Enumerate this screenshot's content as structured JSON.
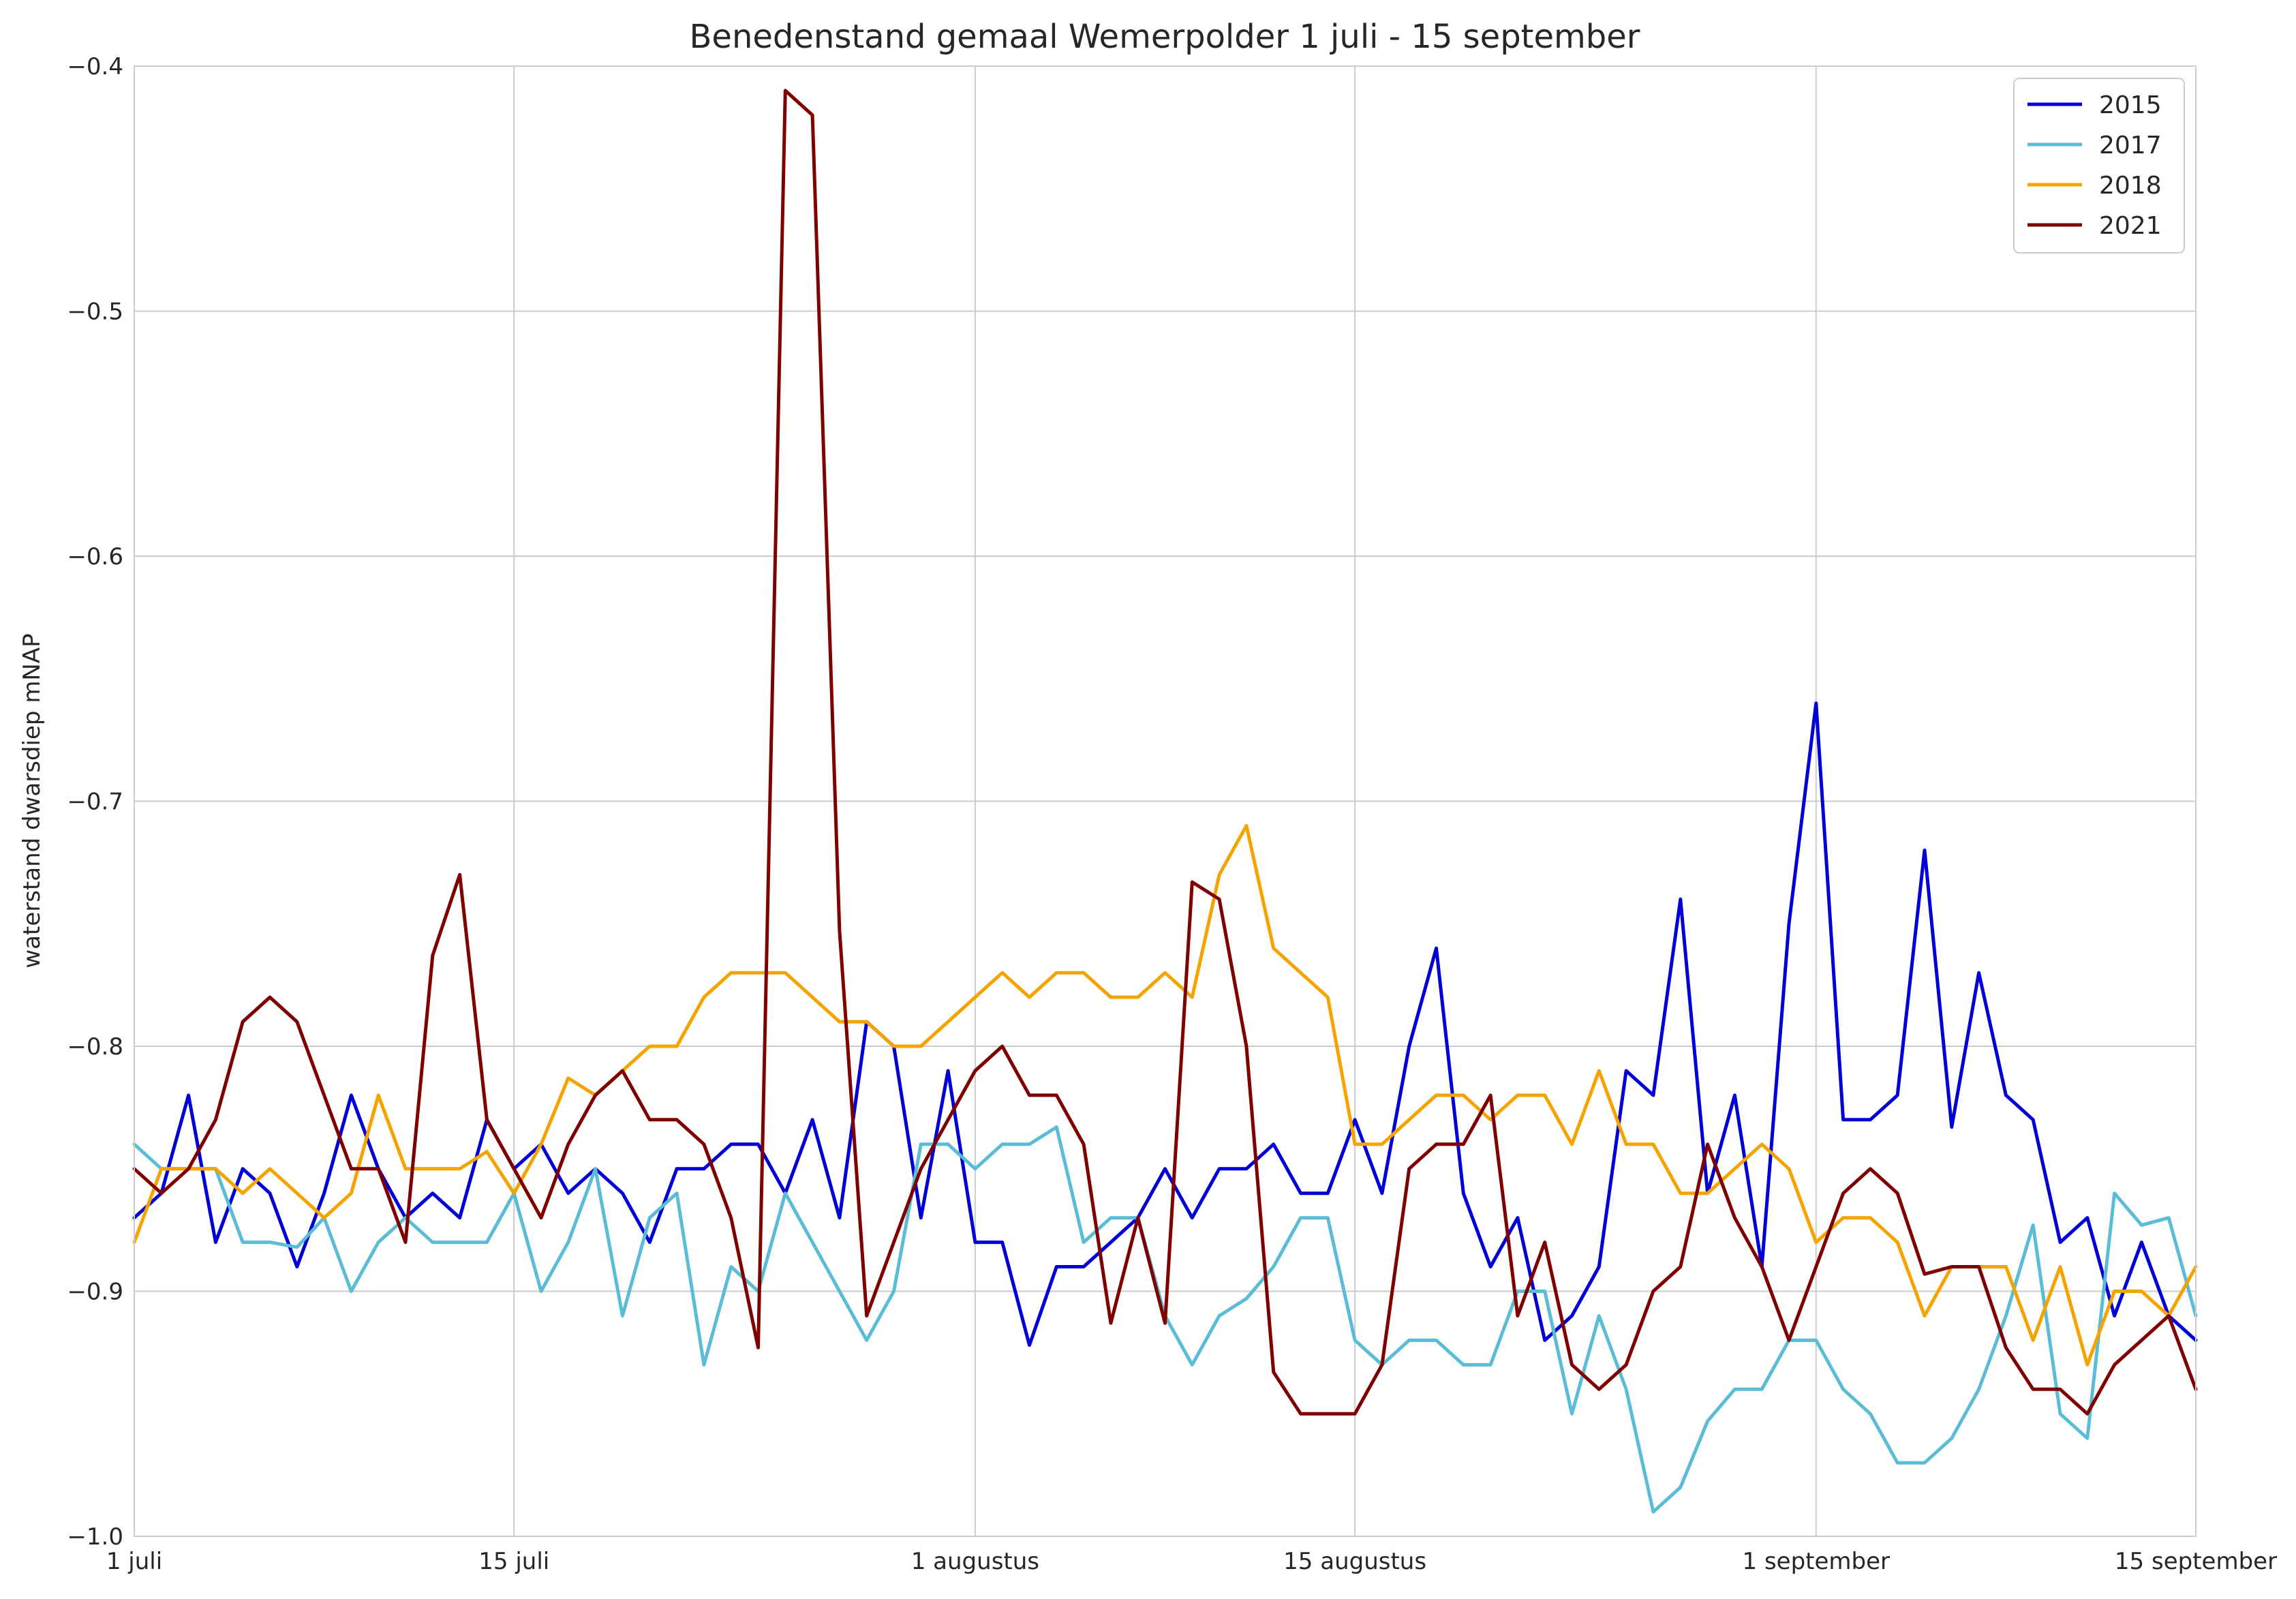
{
  "chart_data": {
    "type": "line",
    "title": "Benedenstand gemaal Wemerpolder 1 juli - 15 september",
    "xlabel": "",
    "ylabel": "waterstand dwarsdiep mNAP",
    "x_axis": {
      "ticks": [
        {
          "label": "1 juli",
          "day": 1
        },
        {
          "label": "15 juli",
          "day": 15
        },
        {
          "label": "1 augustus",
          "day": 32
        },
        {
          "label": "15 augustus",
          "day": 46
        },
        {
          "label": "1 september",
          "day": 63
        },
        {
          "label": "15 september",
          "day": 77
        }
      ],
      "xlim": [
        1,
        77
      ]
    },
    "y_axis": {
      "ylim": [
        -1.0,
        -0.4
      ],
      "ticks": [
        {
          "label": "−1.0",
          "value": -1.0
        },
        {
          "label": "−0.9",
          "value": -0.9
        },
        {
          "label": "−0.8",
          "value": -0.8
        },
        {
          "label": "−0.7",
          "value": -0.7
        },
        {
          "label": "−0.6",
          "value": -0.6
        },
        {
          "label": "−0.5",
          "value": -0.5
        },
        {
          "label": "−0.4",
          "value": -0.4
        }
      ]
    },
    "grid": true,
    "legend_position": "top-right",
    "series": [
      {
        "name": "2015",
        "color": "#0000d6",
        "x": [
          1,
          2,
          3,
          4,
          5,
          6,
          7,
          8,
          9,
          10,
          11,
          12,
          13,
          14,
          15,
          16,
          17,
          18,
          19,
          20,
          21,
          22,
          23,
          24,
          25,
          26,
          27,
          28,
          29,
          30,
          31,
          32,
          33,
          34,
          35,
          36,
          37,
          38,
          39,
          40,
          41,
          42,
          43,
          44,
          45,
          46,
          47,
          48,
          49,
          50,
          51,
          52,
          53,
          54,
          55,
          56,
          57,
          58,
          59,
          60,
          61,
          62,
          63,
          64,
          65,
          66,
          67,
          68,
          69,
          70,
          71,
          72,
          73,
          74,
          75,
          76,
          77
        ],
        "values": [
          -0.87,
          -0.86,
          -0.82,
          -0.88,
          -0.85,
          -0.86,
          -0.89,
          -0.86,
          -0.82,
          -0.85,
          -0.87,
          -0.86,
          -0.87,
          -0.83,
          -0.85,
          -0.84,
          -0.86,
          -0.85,
          -0.86,
          -0.88,
          -0.85,
          -0.85,
          -0.84,
          -0.84,
          -0.86,
          -0.83,
          -0.87,
          -0.79,
          -0.8,
          -0.87,
          -0.81,
          -0.88,
          -0.88,
          -0.922,
          -0.89,
          -0.89,
          -0.88,
          -0.87,
          -0.85,
          -0.87,
          -0.85,
          -0.85,
          -0.84,
          -0.86,
          -0.86,
          -0.83,
          -0.86,
          -0.8,
          -0.76,
          -0.86,
          -0.89,
          -0.87,
          -0.92,
          -0.91,
          -0.89,
          -0.81,
          -0.82,
          -0.74,
          -0.86,
          -0.82,
          -0.89,
          -0.75,
          -0.66,
          -0.83,
          -0.83,
          -0.82,
          -0.72,
          -0.833,
          -0.77,
          -0.82,
          -0.83,
          -0.88,
          -0.87,
          -0.91,
          -0.88,
          -0.91,
          -0.92
        ]
      },
      {
        "name": "2017",
        "color": "#5bbcd6",
        "x": [
          1,
          2,
          3,
          4,
          5,
          6,
          7,
          8,
          9,
          10,
          11,
          12,
          13,
          14,
          15,
          16,
          17,
          18,
          19,
          20,
          21,
          22,
          23,
          24,
          25,
          26,
          27,
          28,
          29,
          30,
          31,
          32,
          33,
          34,
          35,
          36,
          37,
          38,
          39,
          40,
          41,
          42,
          43,
          44,
          45,
          46,
          47,
          48,
          49,
          50,
          51,
          52,
          53,
          54,
          55,
          56,
          57,
          58,
          59,
          60,
          61,
          62,
          63,
          64,
          65,
          66,
          67,
          68,
          69,
          70,
          71,
          72,
          73,
          74,
          75,
          76,
          77
        ],
        "values": [
          -0.84,
          -0.85,
          -0.85,
          -0.85,
          -0.88,
          -0.88,
          -0.882,
          -0.87,
          -0.9,
          -0.88,
          -0.87,
          -0.88,
          -0.88,
          -0.88,
          -0.86,
          -0.9,
          -0.88,
          -0.85,
          -0.91,
          -0.87,
          -0.86,
          -0.93,
          -0.89,
          -0.9,
          -0.86,
          -0.88,
          -0.9,
          -0.92,
          -0.9,
          -0.84,
          -0.84,
          -0.85,
          -0.84,
          -0.84,
          -0.833,
          -0.88,
          -0.87,
          -0.87,
          -0.91,
          -0.93,
          -0.91,
          -0.903,
          -0.89,
          -0.87,
          -0.87,
          -0.92,
          -0.93,
          -0.92,
          -0.92,
          -0.93,
          -0.93,
          -0.9,
          -0.9,
          -0.95,
          -0.91,
          -0.94,
          -0.99,
          -0.98,
          -0.953,
          -0.94,
          -0.94,
          -0.92,
          -0.92,
          -0.94,
          -0.95,
          -0.97,
          -0.97,
          -0.96,
          -0.94,
          -0.91,
          -0.873,
          -0.95,
          -0.96,
          -0.86,
          -0.873,
          -0.87,
          -0.91
        ]
      },
      {
        "name": "2018",
        "color": "#f5a300",
        "x": [
          1,
          2,
          3,
          4,
          5,
          6,
          7,
          8,
          9,
          10,
          11,
          12,
          13,
          14,
          15,
          16,
          17,
          18,
          19,
          20,
          21,
          22,
          23,
          24,
          25,
          26,
          27,
          28,
          29,
          30,
          31,
          32,
          33,
          34,
          35,
          36,
          37,
          38,
          39,
          40,
          41,
          42,
          43,
          44,
          45,
          46,
          47,
          48,
          49,
          50,
          51,
          52,
          53,
          54,
          55,
          56,
          57,
          58,
          59,
          60,
          61,
          62,
          63,
          64,
          65,
          66,
          67,
          68,
          69,
          70,
          71,
          72,
          73,
          74,
          75,
          76,
          77
        ],
        "values": [
          -0.88,
          -0.85,
          -0.85,
          -0.85,
          -0.86,
          -0.85,
          -0.86,
          -0.87,
          -0.86,
          -0.82,
          -0.85,
          -0.85,
          -0.85,
          -0.843,
          -0.86,
          -0.84,
          -0.813,
          -0.82,
          -0.81,
          -0.8,
          -0.8,
          -0.78,
          -0.77,
          -0.77,
          -0.77,
          -0.78,
          -0.79,
          -0.79,
          -0.8,
          -0.8,
          -0.79,
          -0.78,
          -0.77,
          -0.78,
          -0.77,
          -0.77,
          -0.78,
          -0.78,
          -0.77,
          -0.78,
          -0.73,
          -0.71,
          -0.76,
          -0.77,
          -0.78,
          -0.84,
          -0.84,
          -0.83,
          -0.82,
          -0.82,
          -0.83,
          -0.82,
          -0.82,
          -0.84,
          -0.81,
          -0.84,
          -0.84,
          -0.86,
          -0.86,
          -0.85,
          -0.84,
          -0.85,
          -0.88,
          -0.87,
          -0.87,
          -0.88,
          -0.91,
          -0.89,
          -0.89,
          -0.89,
          -0.92,
          -0.89,
          -0.93,
          -0.9,
          -0.9,
          -0.91,
          -0.89
        ]
      },
      {
        "name": "2021",
        "color": "#7f0000",
        "x": [
          1,
          2,
          3,
          4,
          5,
          6,
          7,
          8,
          9,
          10,
          11,
          12,
          13,
          14,
          15,
          16,
          17,
          18,
          19,
          20,
          21,
          22,
          23,
          24,
          25,
          26,
          27,
          28,
          29,
          30,
          31,
          32,
          33,
          34,
          35,
          36,
          37,
          38,
          39,
          40,
          41,
          42,
          43,
          44,
          45,
          46,
          47,
          48,
          49,
          50,
          51,
          52,
          53,
          54,
          55,
          56,
          57,
          58,
          59,
          60,
          61,
          62,
          63,
          64,
          65,
          66,
          67,
          68,
          69,
          70,
          71,
          72,
          73,
          74,
          75,
          76,
          77
        ],
        "values": [
          -0.85,
          -0.86,
          -0.85,
          -0.83,
          -0.79,
          -0.78,
          -0.79,
          -0.82,
          -0.85,
          -0.85,
          -0.88,
          -0.763,
          -0.73,
          -0.83,
          -0.85,
          -0.87,
          -0.84,
          -0.82,
          -0.81,
          -0.83,
          -0.83,
          -0.84,
          -0.87,
          -0.923,
          -0.41,
          -0.42,
          -0.753,
          -0.91,
          -0.88,
          -0.85,
          -0.83,
          -0.81,
          -0.8,
          -0.82,
          -0.82,
          -0.84,
          -0.913,
          -0.87,
          -0.913,
          -0.733,
          -0.74,
          -0.8,
          -0.933,
          -0.95,
          -0.95,
          -0.95,
          -0.93,
          -0.85,
          -0.84,
          -0.84,
          -0.82,
          -0.91,
          -0.88,
          -0.93,
          -0.94,
          -0.93,
          -0.9,
          -0.89,
          -0.84,
          -0.87,
          -0.89,
          -0.92,
          -0.89,
          -0.86,
          -0.85,
          -0.86,
          -0.893,
          -0.89,
          -0.89,
          -0.923,
          -0.94,
          -0.94,
          -0.95,
          -0.93,
          -0.92,
          -0.91,
          -0.94
        ]
      }
    ]
  }
}
